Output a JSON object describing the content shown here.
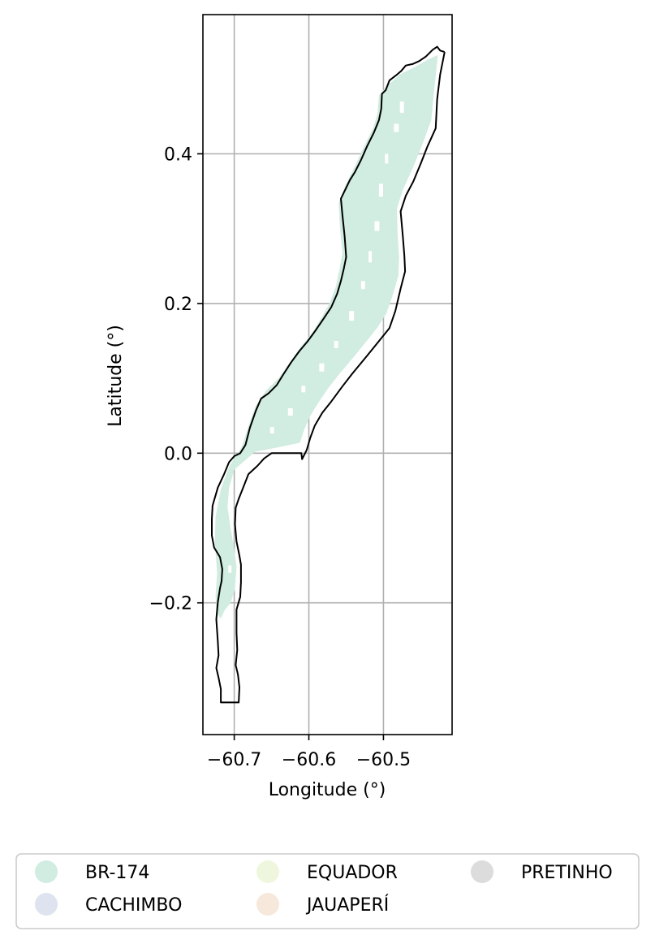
{
  "chart_data": {
    "type": "map",
    "xlabel": "Longitude (°)",
    "ylabel": "Latitude (°)",
    "xlim": [
      -60.742,
      -60.408
    ],
    "ylim": [
      -0.376,
      0.586
    ],
    "x_ticks": [
      {
        "value": -60.7,
        "label": "−60.7"
      },
      {
        "value": -60.6,
        "label": "−60.6"
      },
      {
        "value": -60.5,
        "label": "−60.5"
      }
    ],
    "y_ticks": [
      {
        "value": -0.2,
        "label": "−0.2"
      },
      {
        "value": 0.0,
        "label": "0.0"
      },
      {
        "value": 0.2,
        "label": "0.2"
      },
      {
        "value": 0.4,
        "label": "0.4"
      }
    ],
    "grid": true,
    "legend_position": "bottom",
    "legend": [
      {
        "label": "BR-174",
        "color": "#d1ece0"
      },
      {
        "label": "CACHIMBO",
        "color": "#dfe3ef"
      },
      {
        "label": "EQUADOR",
        "color": "#eef7dd"
      },
      {
        "label": "JAUAPERÍ",
        "color": "#f6e8db"
      },
      {
        "label": "PRETINHO",
        "color": "#dcdcdc"
      }
    ],
    "boundary": [
      [
        -60.418,
        0.536
      ],
      [
        -60.424,
        0.506
      ],
      [
        -60.428,
        0.473
      ],
      [
        -60.43,
        0.434
      ],
      [
        -60.441,
        0.41
      ],
      [
        -60.45,
        0.387
      ],
      [
        -60.46,
        0.363
      ],
      [
        -60.47,
        0.344
      ],
      [
        -60.477,
        0.323
      ],
      [
        -60.474,
        0.29
      ],
      [
        -60.472,
        0.264
      ],
      [
        -60.471,
        0.243
      ],
      [
        -60.477,
        0.22
      ],
      [
        -60.484,
        0.19
      ],
      [
        -60.492,
        0.167
      ],
      [
        -60.505,
        0.151
      ],
      [
        -60.522,
        0.13
      ],
      [
        -60.542,
        0.106
      ],
      [
        -60.556,
        0.088
      ],
      [
        -60.57,
        0.069
      ],
      [
        -60.582,
        0.054
      ],
      [
        -60.592,
        0.037
      ],
      [
        -60.598,
        0.021
      ],
      [
        -60.603,
        0.004
      ],
      [
        -60.609,
        -0.008
      ],
      [
        -60.61,
        0.0
      ],
      [
        -60.65,
        0.0
      ],
      [
        -60.66,
        -0.007
      ],
      [
        -60.669,
        -0.017
      ],
      [
        -60.681,
        -0.028
      ],
      [
        -60.688,
        -0.046
      ],
      [
        -60.694,
        -0.061
      ],
      [
        -60.698,
        -0.073
      ],
      [
        -60.699,
        -0.095
      ],
      [
        -60.697,
        -0.118
      ],
      [
        -60.693,
        -0.137
      ],
      [
        -60.691,
        -0.149
      ],
      [
        -60.691,
        -0.172
      ],
      [
        -60.692,
        -0.192
      ],
      [
        -60.697,
        -0.209
      ],
      [
        -60.697,
        -0.24
      ],
      [
        -60.696,
        -0.263
      ],
      [
        -60.698,
        -0.283
      ],
      [
        -60.695,
        -0.296
      ],
      [
        -60.693,
        -0.313
      ],
      [
        -60.694,
        -0.333
      ],
      [
        -60.718,
        -0.333
      ],
      [
        -60.718,
        -0.315
      ],
      [
        -60.721,
        -0.3
      ],
      [
        -60.724,
        -0.287
      ],
      [
        -60.721,
        -0.27
      ],
      [
        -60.722,
        -0.252
      ],
      [
        -60.724,
        -0.222
      ],
      [
        -60.722,
        -0.199
      ],
      [
        -60.719,
        -0.18
      ],
      [
        -60.717,
        -0.171
      ],
      [
        -60.716,
        -0.155
      ],
      [
        -60.719,
        -0.139
      ],
      [
        -60.727,
        -0.126
      ],
      [
        -60.73,
        -0.11
      ],
      [
        -60.73,
        -0.088
      ],
      [
        -60.729,
        -0.07
      ],
      [
        -60.722,
        -0.046
      ],
      [
        -60.714,
        -0.029
      ],
      [
        -60.707,
        -0.012
      ],
      [
        -60.7,
        -0.004
      ],
      [
        -60.692,
        0.0
      ],
      [
        -60.685,
        0.011
      ],
      [
        -60.679,
        0.034
      ],
      [
        -60.671,
        0.057
      ],
      [
        -60.664,
        0.073
      ],
      [
        -60.654,
        0.08
      ],
      [
        -60.643,
        0.091
      ],
      [
        -60.635,
        0.104
      ],
      [
        -60.624,
        0.121
      ],
      [
        -60.613,
        0.136
      ],
      [
        -60.602,
        0.149
      ],
      [
        -60.591,
        0.164
      ],
      [
        -60.58,
        0.18
      ],
      [
        -60.57,
        0.195
      ],
      [
        -60.562,
        0.213
      ],
      [
        -60.557,
        0.23
      ],
      [
        -60.553,
        0.247
      ],
      [
        -60.55,
        0.262
      ],
      [
        -60.552,
        0.29
      ],
      [
        -60.555,
        0.318
      ],
      [
        -60.557,
        0.34
      ],
      [
        -60.545,
        0.365
      ],
      [
        -60.538,
        0.376
      ],
      [
        -60.53,
        0.392
      ],
      [
        -60.522,
        0.41
      ],
      [
        -60.513,
        0.428
      ],
      [
        -60.506,
        0.445
      ],
      [
        -60.503,
        0.46
      ],
      [
        -60.502,
        0.48
      ],
      [
        -60.497,
        0.485
      ],
      [
        -60.492,
        0.498
      ],
      [
        -60.483,
        0.505
      ],
      [
        -60.476,
        0.511
      ],
      [
        -60.47,
        0.518
      ],
      [
        -60.461,
        0.52
      ],
      [
        -60.452,
        0.524
      ],
      [
        -60.443,
        0.53
      ],
      [
        -60.434,
        0.539
      ],
      [
        -60.428,
        0.543
      ],
      [
        -60.424,
        0.538
      ],
      [
        -60.418,
        0.536
      ]
    ],
    "features": [
      {
        "class": "BR-174",
        "polygon": [
          [
            -60.427,
            0.532
          ],
          [
            -60.432,
            0.485
          ],
          [
            -60.436,
            0.445
          ],
          [
            -60.448,
            0.412
          ],
          [
            -60.462,
            0.378
          ],
          [
            -60.474,
            0.352
          ],
          [
            -60.482,
            0.327
          ],
          [
            -60.481,
            0.292
          ],
          [
            -60.479,
            0.262
          ],
          [
            -60.48,
            0.237
          ],
          [
            -60.488,
            0.21
          ],
          [
            -60.496,
            0.187
          ],
          [
            -60.508,
            0.168
          ],
          [
            -60.524,
            0.148
          ],
          [
            -60.542,
            0.126
          ],
          [
            -60.559,
            0.106
          ],
          [
            -60.574,
            0.087
          ],
          [
            -60.587,
            0.068
          ],
          [
            -60.598,
            0.05
          ],
          [
            -60.606,
            0.032
          ],
          [
            -60.612,
            0.014
          ],
          [
            -60.64,
            0.008
          ],
          [
            -60.672,
            0.002
          ],
          [
            -60.686,
            -0.01
          ],
          [
            -60.7,
            -0.022
          ],
          [
            -60.707,
            -0.046
          ],
          [
            -60.709,
            -0.072
          ],
          [
            -60.705,
            -0.1
          ],
          [
            -60.7,
            -0.128
          ],
          [
            -60.697,
            -0.152
          ],
          [
            -60.699,
            -0.182
          ],
          [
            -60.705,
            -0.2
          ],
          [
            -60.713,
            -0.21
          ],
          [
            -60.718,
            -0.221
          ],
          [
            -60.724,
            -0.213
          ],
          [
            -60.725,
            -0.19
          ],
          [
            -60.723,
            -0.16
          ],
          [
            -60.726,
            -0.12
          ],
          [
            -60.725,
            -0.085
          ],
          [
            -60.718,
            -0.048
          ],
          [
            -60.706,
            -0.016
          ],
          [
            -60.69,
            0.008
          ],
          [
            -60.681,
            0.036
          ],
          [
            -60.671,
            0.064
          ],
          [
            -60.657,
            0.084
          ],
          [
            -60.64,
            0.101
          ],
          [
            -60.625,
            0.122
          ],
          [
            -60.611,
            0.142
          ],
          [
            -60.596,
            0.16
          ],
          [
            -60.583,
            0.181
          ],
          [
            -60.572,
            0.201
          ],
          [
            -60.564,
            0.222
          ],
          [
            -60.559,
            0.245
          ],
          [
            -60.555,
            0.268
          ],
          [
            -60.558,
            0.298
          ],
          [
            -60.56,
            0.334
          ],
          [
            -60.551,
            0.358
          ],
          [
            -60.538,
            0.384
          ],
          [
            -60.526,
            0.41
          ],
          [
            -60.514,
            0.434
          ],
          [
            -60.508,
            0.454
          ],
          [
            -60.506,
            0.478
          ],
          [
            -60.494,
            0.492
          ],
          [
            -60.478,
            0.506
          ],
          [
            -60.458,
            0.516
          ],
          [
            -60.44,
            0.526
          ],
          [
            -60.427,
            0.532
          ]
        ]
      }
    ]
  }
}
